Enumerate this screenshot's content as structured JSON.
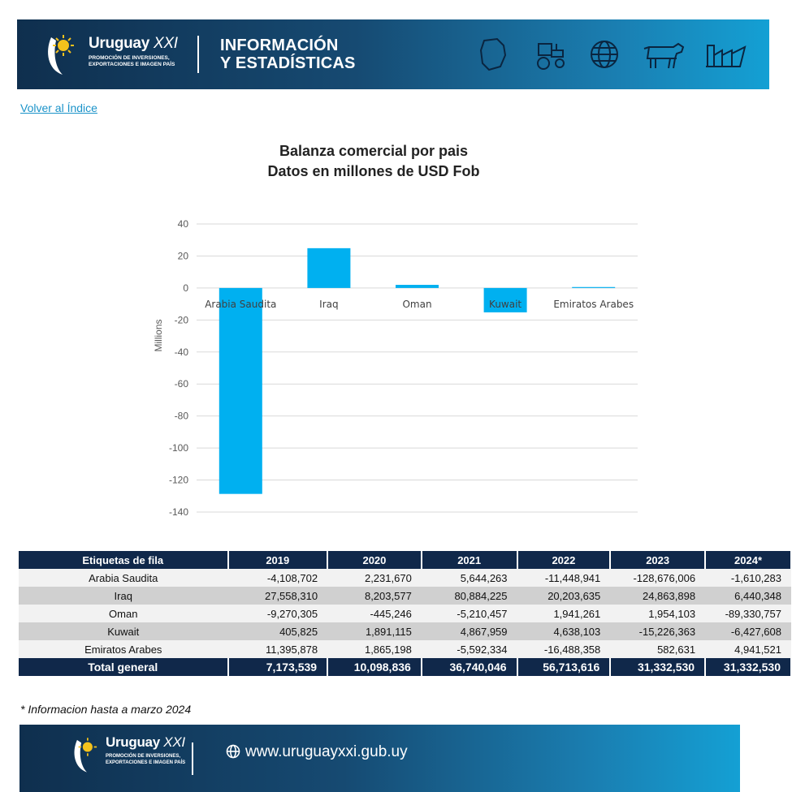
{
  "header": {
    "brand_name": "Uruguay",
    "brand_suffix": "XXI",
    "brand_tagline_1": "PROMOCIÓN DE INVERSIONES,",
    "brand_tagline_2": "EXPORTACIONES E IMAGEN PAÍS",
    "section_line1": "INFORMACIÓN",
    "section_line2": "Y ESTADÍSTICAS",
    "icons": [
      "uruguay-map-icon",
      "tractor-icon",
      "globe-icon",
      "cow-icon",
      "factory-icon"
    ]
  },
  "back_link": "Volver al Índice",
  "chart_title_line1": "Balanza comercial por pais",
  "chart_title_line2": "Datos en millones de USD Fob",
  "chart_data": {
    "type": "bar",
    "ylabel": "Millions",
    "categories": [
      "Arabia Saudita",
      "Iraq",
      "Oman",
      "Kuwait",
      "Emiratos Arabes"
    ],
    "values": [
      -128.676006,
      24.863898,
      1.954103,
      -15.226363,
      0.582631
    ],
    "ylim": [
      -140,
      40
    ],
    "yticks": [
      40,
      20,
      0,
      -20,
      -40,
      -60,
      -80,
      -100,
      -120,
      -140
    ],
    "bar_color": "#00b0f0",
    "grid": true
  },
  "table": {
    "headers": [
      "Etiquetas de fila",
      "2019",
      "2020",
      "2021",
      "2022",
      "2023",
      "2024*"
    ],
    "rows": [
      [
        "Arabia Saudita",
        "-4,108,702",
        "2,231,670",
        "5,644,263",
        "-11,448,941",
        "-128,676,006",
        "-1,610,283"
      ],
      [
        "Iraq",
        "27,558,310",
        "8,203,577",
        "80,884,225",
        "20,203,635",
        "24,863,898",
        "6,440,348"
      ],
      [
        "Oman",
        "-9,270,305",
        "-445,246",
        "-5,210,457",
        "1,941,261",
        "1,954,103",
        "-89,330,757"
      ],
      [
        "Kuwait",
        "405,825",
        "1,891,115",
        "4,867,959",
        "4,638,103",
        "-15,226,363",
        "-6,427,608"
      ],
      [
        "Emiratos Arabes",
        "11,395,878",
        "1,865,198",
        "-5,592,334",
        "-16,488,358",
        "582,631",
        "4,941,521"
      ]
    ],
    "total": [
      "Total general",
      "7,173,539",
      "10,098,836",
      "36,740,046",
      "56,713,616",
      "31,332,530",
      "31,332,530"
    ]
  },
  "footnote": "* Informacion hasta a marzo 2024",
  "footer": {
    "brand_name": "Uruguay",
    "brand_suffix": "XXI",
    "brand_tagline_1": "PROMOCIÓN DE INVERSIONES,",
    "brand_tagline_2": "EXPORTACIONES E IMAGEN PAÍS",
    "url": "www.uruguayxxi.gub.uy"
  },
  "colors": {
    "banner_dark": "#0f2f4e",
    "banner_light": "#14a0d4",
    "table_header": "#10284a",
    "link": "#1b93c9"
  }
}
